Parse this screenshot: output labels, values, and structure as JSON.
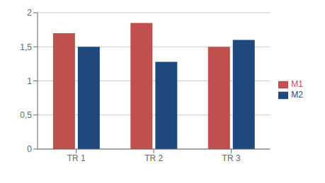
{
  "chart_data": {
    "type": "bar",
    "categories": [
      "TR 1",
      "TR 2",
      "TR 3"
    ],
    "series": [
      {
        "name": "M1",
        "color": "#C0504D",
        "values": [
          1.7,
          1.85,
          1.5
        ]
      },
      {
        "name": "M2",
        "color": "#1F497D",
        "values": [
          1.5,
          1.28,
          1.6
        ]
      }
    ],
    "ylim": [
      0,
      2
    ],
    "yticks": [
      0,
      {
        "value": 0.5,
        "label": "0,5"
      },
      1,
      {
        "value": 1.5,
        "label": "1,5"
      },
      2
    ],
    "grid": true,
    "legend": "right"
  }
}
